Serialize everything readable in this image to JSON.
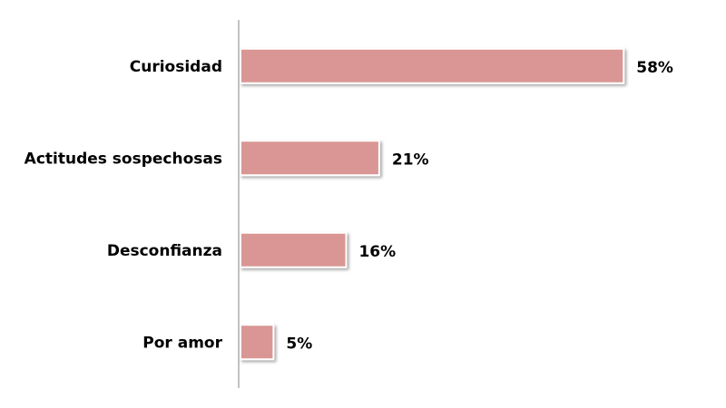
{
  "chart_data": {
    "type": "bar",
    "orientation": "horizontal",
    "categories": [
      "Curiosidad",
      "Actitudes sospechosas",
      "Desconfianza",
      "Por amor"
    ],
    "values": [
      58,
      21,
      16,
      5
    ],
    "value_labels": [
      "58%",
      "21%",
      "16%",
      "5%"
    ],
    "color": "#d99694"
  }
}
